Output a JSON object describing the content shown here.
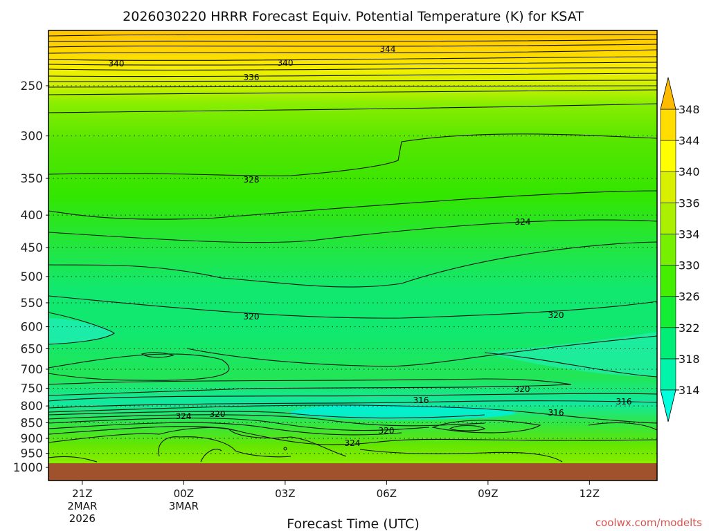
{
  "title": "2026030220 HRRR Forecast Equiv. Potential Temperature (K) for KSAT",
  "xlabel": "Forecast Time (UTC)",
  "credit": "coolwx.com/modelts",
  "chart_data": {
    "type": "heatmap",
    "title": "2026030220 HRRR Forecast Equiv. Potential Temperature (K) for KSAT",
    "xlabel": "Forecast Time (UTC)",
    "ylabel": "",
    "x_ticks": [
      {
        "label": "21Z",
        "sub": [
          "2MAR",
          "2026"
        ],
        "hour": 21
      },
      {
        "label": "00Z",
        "sub": [
          "3MAR"
        ],
        "hour": 24
      },
      {
        "label": "03Z",
        "sub": [],
        "hour": 27
      },
      {
        "label": "06Z",
        "sub": [],
        "hour": 30
      },
      {
        "label": "09Z",
        "sub": [],
        "hour": 33
      },
      {
        "label": "12Z",
        "sub": [],
        "hour": 36
      }
    ],
    "x_range_hours": [
      20,
      38
    ],
    "y_ticks": [
      "250",
      "300",
      "350",
      "400",
      "450",
      "500",
      "550",
      "600",
      "650",
      "700",
      "750",
      "800",
      "850",
      "900",
      "950",
      "1000"
    ],
    "y_range": [
      200,
      1000
    ],
    "y_scale": "log-pressure, inverted",
    "grid": "dotted horizontal at pressure ticks",
    "ground_color": "#a0522d",
    "colorbar": {
      "levels": [
        314,
        318,
        322,
        326,
        330,
        334,
        336,
        340,
        344,
        348
      ],
      "colors": [
        "#00ffdd",
        "#00f5aa",
        "#00ee77",
        "#11ee33",
        "#44ee00",
        "#77f000",
        "#aaf000",
        "#d8f000",
        "#ffff00",
        "#ffdd00",
        "#ffbb00"
      ]
    },
    "contour_labels": [
      "344",
      "340",
      "340",
      "336",
      "328",
      "324",
      "320",
      "320",
      "320",
      "316",
      "316",
      "316",
      "324",
      "320",
      "320",
      "324"
    ],
    "profile": [
      {
        "p": 200,
        "theta": 347
      },
      {
        "p": 230,
        "theta": 340
      },
      {
        "p": 250,
        "theta": 335
      },
      {
        "p": 300,
        "theta": 330
      },
      {
        "p": 350,
        "theta": 328
      },
      {
        "p": 400,
        "theta": 325
      },
      {
        "p": 450,
        "theta": 323
      },
      {
        "p": 500,
        "theta": 321
      },
      {
        "p": 550,
        "theta": 320
      },
      {
        "p": 600,
        "theta": 319
      },
      {
        "p": 650,
        "theta": 319
      },
      {
        "p": 700,
        "theta": 319
      },
      {
        "p": 750,
        "theta": 320
      },
      {
        "p": 800,
        "theta": 317
      },
      {
        "p": 850,
        "theta": 322
      },
      {
        "p": 900,
        "theta": 326
      },
      {
        "p": 950,
        "theta": 329
      },
      {
        "p": 1000,
        "theta": 331
      }
    ]
  }
}
